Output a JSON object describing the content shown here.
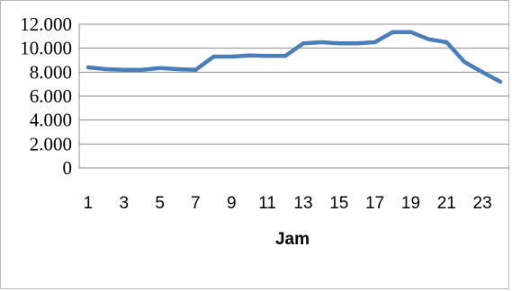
{
  "chart_data": {
    "type": "line",
    "title": "",
    "xlabel": "Jam",
    "ylabel": "",
    "ylim": [
      0,
      12000
    ],
    "yticks": [
      0,
      2000,
      4000,
      6000,
      8000,
      10000,
      12000
    ],
    "ytick_labels": [
      "0",
      "2.000",
      "4.000",
      "6.000",
      "8.000",
      "10.000",
      "12.000"
    ],
    "xtick_labels": [
      "1",
      "3",
      "5",
      "7",
      "9",
      "11",
      "13",
      "15",
      "17",
      "19",
      "21",
      "23"
    ],
    "grid": true,
    "legend": "none",
    "series_color": "#4a7ebb",
    "x": [
      1,
      2,
      3,
      4,
      5,
      6,
      7,
      8,
      9,
      10,
      11,
      12,
      13,
      14,
      15,
      16,
      17,
      18,
      19,
      20,
      21,
      22,
      23,
      24
    ],
    "values": [
      8400,
      8250,
      8200,
      8200,
      8350,
      8250,
      8200,
      9300,
      9300,
      9400,
      9350,
      9350,
      10400,
      10500,
      10400,
      10400,
      10500,
      11350,
      11350,
      10750,
      10500,
      8850,
      8000,
      7200
    ]
  }
}
